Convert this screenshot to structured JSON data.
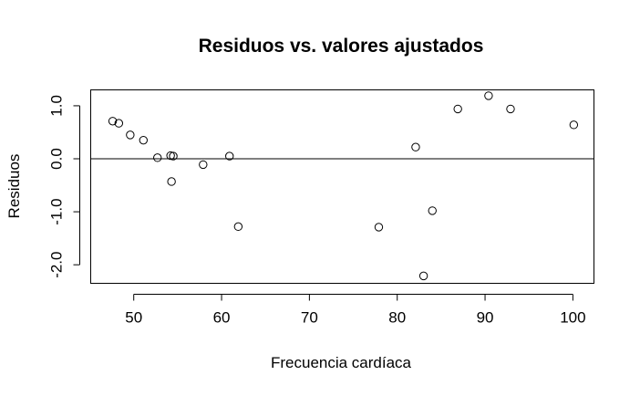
{
  "chart_data": {
    "type": "scatter",
    "title": "Residuos vs. valores ajustados",
    "xlabel": "Frecuencia cardíaca",
    "ylabel": "Residuos",
    "xlim": [
      45.1,
      102.4
    ],
    "ylim": [
      -2.35,
      1.3
    ],
    "xticks": [
      50,
      60,
      70,
      80,
      90,
      100
    ],
    "xtick_labels": [
      "50",
      "60",
      "70",
      "80",
      "90",
      "100"
    ],
    "yticks": [
      -2.0,
      -1.0,
      0.0,
      1.0
    ],
    "ytick_labels": [
      "-2.0",
      "-1.0",
      "0.0",
      "1.0"
    ],
    "reference_line_y": 0,
    "grid": false,
    "points": [
      {
        "x": 47.6,
        "y": 0.71
      },
      {
        "x": 48.3,
        "y": 0.67
      },
      {
        "x": 49.6,
        "y": 0.45
      },
      {
        "x": 51.1,
        "y": 0.35
      },
      {
        "x": 52.7,
        "y": 0.02
      },
      {
        "x": 54.2,
        "y": 0.06
      },
      {
        "x": 54.5,
        "y": 0.05
      },
      {
        "x": 54.3,
        "y": -0.43
      },
      {
        "x": 57.9,
        "y": -0.11
      },
      {
        "x": 60.9,
        "y": 0.05
      },
      {
        "x": 61.9,
        "y": -1.28
      },
      {
        "x": 77.9,
        "y": -1.29
      },
      {
        "x": 82.1,
        "y": 0.22
      },
      {
        "x": 83.0,
        "y": -2.21
      },
      {
        "x": 84.0,
        "y": -0.98
      },
      {
        "x": 86.9,
        "y": 0.94
      },
      {
        "x": 90.4,
        "y": 1.19
      },
      {
        "x": 92.9,
        "y": 0.94
      },
      {
        "x": 100.1,
        "y": 0.64
      }
    ]
  }
}
